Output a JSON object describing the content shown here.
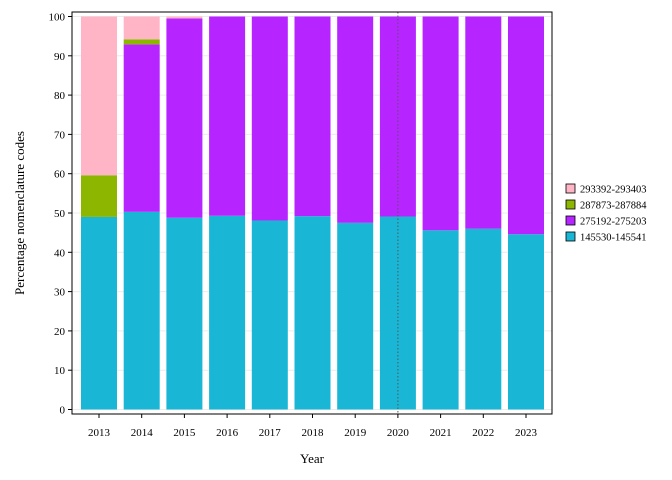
{
  "chart_data": {
    "type": "bar",
    "stacked": true,
    "title": "",
    "xlabel": "Year",
    "ylabel": "Percentage nomenclature codes",
    "ylim": [
      0,
      100
    ],
    "yticks": [
      0,
      10,
      20,
      30,
      40,
      50,
      60,
      70,
      80,
      90,
      100
    ],
    "categories": [
      "2013",
      "2014",
      "2015",
      "2016",
      "2017",
      "2018",
      "2019",
      "2020",
      "2021",
      "2022",
      "2023"
    ],
    "series": [
      {
        "name": "145530-145541",
        "color": "#1ab6d6",
        "values": [
          49,
          50.3,
          48.8,
          49.3,
          48.1,
          49.2,
          47.5,
          49.1,
          45.6,
          46,
          44.6
        ]
      },
      {
        "name": "275192-275203",
        "color": "#b624ff",
        "values": [
          0,
          42.6,
          50.7,
          50.7,
          51.9,
          50.8,
          52.5,
          50.9,
          54.4,
          54,
          55.4
        ]
      },
      {
        "name": "287873-287884",
        "color": "#8db600",
        "values": [
          10.6,
          1.3,
          0,
          0,
          0,
          0,
          0,
          0,
          0,
          0,
          0
        ]
      },
      {
        "name": "293392-293403",
        "color": "#ffb5c5",
        "values": [
          40.4,
          5.8,
          0.5,
          0,
          0,
          0,
          0,
          0,
          0,
          0,
          0
        ]
      }
    ],
    "legend_position": "right",
    "legend_order": [
      "293392-293403",
      "287873-287884",
      "275192-275203",
      "145530-145541"
    ],
    "reference_line": {
      "x": "2020",
      "style": "dotted"
    },
    "grid": true
  }
}
